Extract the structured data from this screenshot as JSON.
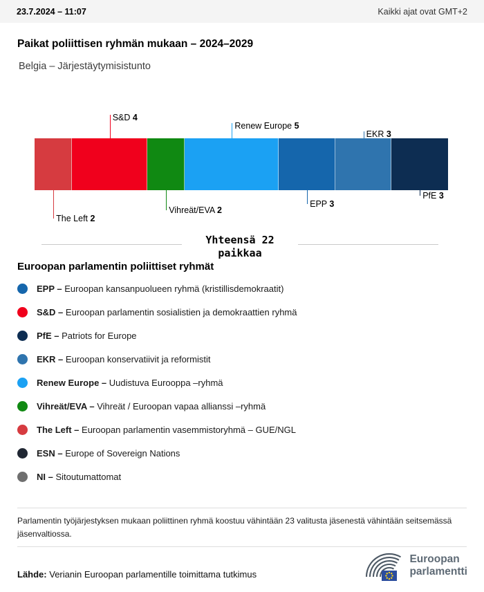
{
  "topbar": {
    "datetime": "23.7.2024 – 11:07",
    "timezone": "Kaikki ajat ovat GMT+2"
  },
  "page": {
    "title": "Paikat poliittisen ryhmän mukaan – 2024–2029",
    "subtitle": "Belgia – Järjestäytymisistunto"
  },
  "chart_data": {
    "type": "bar",
    "variant": "horizontal-stacked-seat-bar",
    "title": "Paikat poliittisen ryhmän mukaan – 2024–2029",
    "region": "Belgia – Järjestäytymisistunto",
    "total_seats": 22,
    "total_label_line1": "Yhteensä 22",
    "total_label_line2": "paikkaa",
    "categories": [
      "The Left",
      "S&D",
      "Vihreät/EVA",
      "Renew Europe",
      "EPP",
      "EKR",
      "PfE"
    ],
    "values": [
      2,
      4,
      2,
      5,
      3,
      3,
      3
    ],
    "segments": [
      {
        "name": "The Left",
        "seats": 2,
        "color": "#d63b40",
        "label_side": "below",
        "tier": 4
      },
      {
        "name": "S&D",
        "seats": 4,
        "color": "#f0001c",
        "label_side": "above",
        "tier": 3
      },
      {
        "name": "Vihreät/EVA",
        "seats": 2,
        "color": "#108912",
        "label_side": "below",
        "tier": 3
      },
      {
        "name": "Renew Europe",
        "seats": 5,
        "color": "#1ba1f3",
        "label_side": "above",
        "tier": 2
      },
      {
        "name": "EPP",
        "seats": 3,
        "color": "#1566ac",
        "label_side": "below",
        "tier": 2
      },
      {
        "name": "EKR",
        "seats": 3,
        "color": "#2f74ae",
        "label_side": "above",
        "tier": 1
      },
      {
        "name": "PfE",
        "seats": 3,
        "color": "#0d2d52",
        "label_side": "below",
        "tier": 1
      }
    ]
  },
  "legend": {
    "heading": "Euroopan parlamentin poliittiset ryhmät",
    "items": [
      {
        "abbr": "EPP –",
        "desc": "Euroopan kansanpuolueen ryhmä (kristillisdemokraatit)",
        "color": "#1566ac"
      },
      {
        "abbr": "S&D –",
        "desc": "Euroopan parlamentin sosialistien ja demokraattien ryhmä",
        "color": "#f0001c"
      },
      {
        "abbr": "PfE –",
        "desc": "Patriots for Europe",
        "color": "#0d2d52"
      },
      {
        "abbr": "EKR –",
        "desc": "Euroopan konservatiivit ja reformistit",
        "color": "#2f74ae"
      },
      {
        "abbr": "Renew Europe –",
        "desc": "Uudistuva Eurooppa –ryhmä",
        "color": "#1ba1f3"
      },
      {
        "abbr": "Vihreät/EVA –",
        "desc": "Vihreät / Euroopan vapaa allianssi –ryhmä",
        "color": "#108912"
      },
      {
        "abbr": "The Left –",
        "desc": "Euroopan parlamentin vasemmistoryhmä – GUE/NGL",
        "color": "#d63b40"
      },
      {
        "abbr": "ESN –",
        "desc": "Europe of Sovereign Nations",
        "color": "#202733"
      },
      {
        "abbr": "NI –",
        "desc": "Sitoutumattomat",
        "color": "#6f6f6f"
      }
    ]
  },
  "footnote": "Parlamentin työjärjestyksen mukaan poliittinen ryhmä koostuu vähintään 23 valitusta jäsenestä vähintään seitsemässä jäsenvaltiossa.",
  "source": {
    "label": "Lähde:",
    "text": " Verianin Euroopan parlamentille toimittama tutkimus"
  },
  "logo": {
    "line1": "Euroopan",
    "line2": "parlamentti"
  }
}
